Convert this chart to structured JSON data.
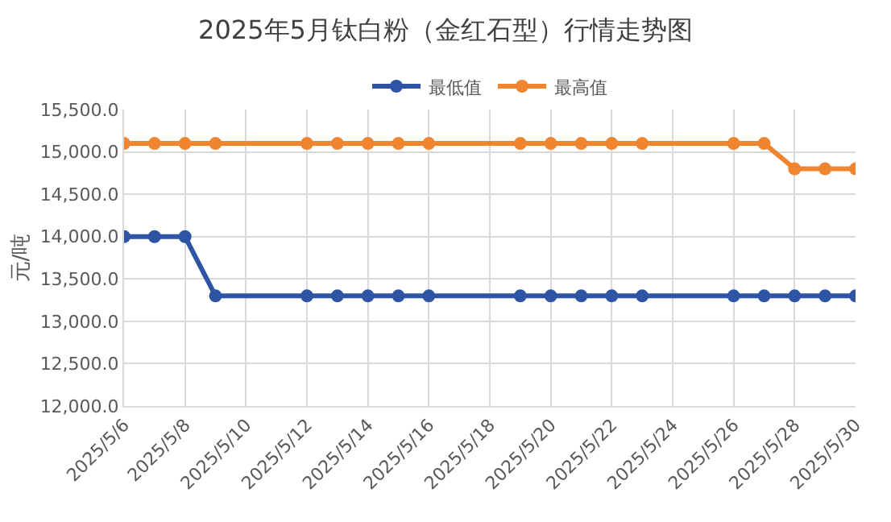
{
  "chart_data": {
    "type": "line",
    "title": "2025年5月钛白粉（金红石型）行情走势图",
    "ylabel": "元/吨",
    "x": [
      "2025-05-06",
      "2025-05-07",
      "2025-05-08",
      "2025-05-09",
      "2025-05-12",
      "2025-05-13",
      "2025-05-14",
      "2025-05-15",
      "2025-05-16",
      "2025-05-19",
      "2025-05-20",
      "2025-05-21",
      "2025-05-22",
      "2025-05-23",
      "2025-05-26",
      "2025-05-27",
      "2025-05-28",
      "2025-05-29",
      "2025-05-30"
    ],
    "series": [
      {
        "name": "最低值",
        "color": "#2e55a3",
        "values": [
          14000,
          14000,
          14000,
          13300,
          13300,
          13300,
          13300,
          13300,
          13300,
          13300,
          13300,
          13300,
          13300,
          13300,
          13300,
          13300,
          13300,
          13300,
          13300
        ]
      },
      {
        "name": "最高值",
        "color": "#f08530",
        "values": [
          15100,
          15100,
          15100,
          15100,
          15100,
          15100,
          15100,
          15100,
          15100,
          15100,
          15100,
          15100,
          15100,
          15100,
          15100,
          15100,
          14800,
          14800,
          14800
        ]
      }
    ],
    "xlim": [
      "2025-05-06",
      "2025-05-30"
    ],
    "xticks": [
      {
        "value": "2025-05-06",
        "label": "2025/5/6"
      },
      {
        "value": "2025-05-08",
        "label": "2025/5/8"
      },
      {
        "value": "2025-05-10",
        "label": "2025/5/10"
      },
      {
        "value": "2025-05-12",
        "label": "2025/5/12"
      },
      {
        "value": "2025-05-14",
        "label": "2025/5/14"
      },
      {
        "value": "2025-05-16",
        "label": "2025/5/16"
      },
      {
        "value": "2025-05-18",
        "label": "2025/5/18"
      },
      {
        "value": "2025-05-20",
        "label": "2025/5/20"
      },
      {
        "value": "2025-05-22",
        "label": "2025/5/22"
      },
      {
        "value": "2025-05-24",
        "label": "2025/5/24"
      },
      {
        "value": "2025-05-26",
        "label": "2025/5/26"
      },
      {
        "value": "2025-05-28",
        "label": "2025/5/28"
      },
      {
        "value": "2025-05-30",
        "label": "2025/5/30"
      }
    ],
    "ylim": [
      12000,
      15500
    ],
    "yticks": [
      {
        "value": 12000,
        "label": "12,000.0"
      },
      {
        "value": 12500,
        "label": "12,500.0"
      },
      {
        "value": 13000,
        "label": "13,000.0"
      },
      {
        "value": 13500,
        "label": "13,500.0"
      },
      {
        "value": 14000,
        "label": "14,000.0"
      },
      {
        "value": 14500,
        "label": "14,500.0"
      },
      {
        "value": 15000,
        "label": "15,000.0"
      },
      {
        "value": 15500,
        "label": "15,500.0"
      }
    ],
    "grid": true,
    "legend": "top",
    "marker": "circle",
    "line_style": "solid"
  }
}
